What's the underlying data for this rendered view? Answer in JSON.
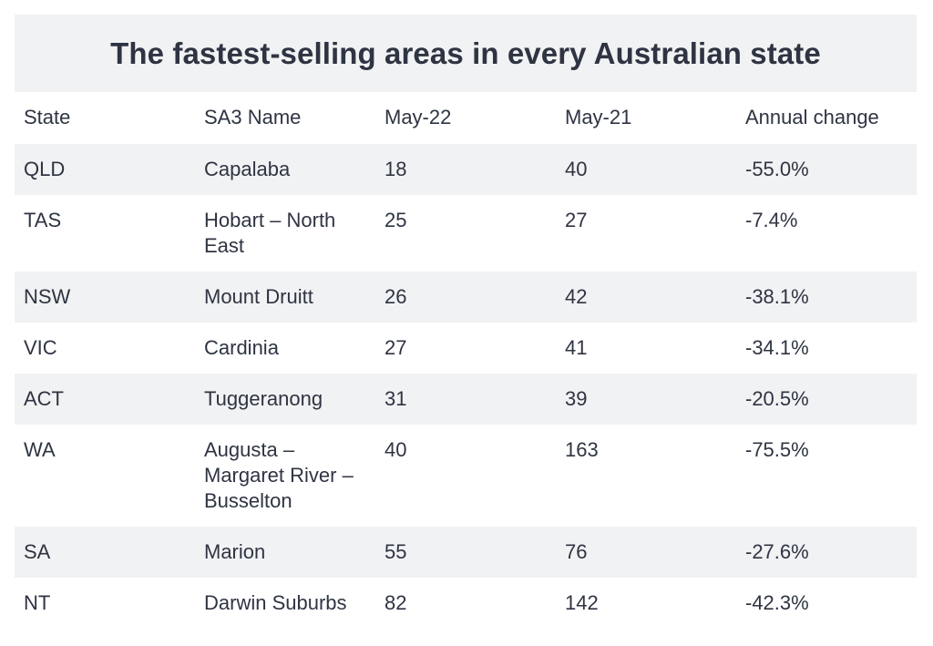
{
  "title": "The fastest-selling areas in every Australian state",
  "columns": [
    "State",
    "SA3 Name",
    "May-22",
    "May-21",
    "Annual change"
  ],
  "rows": [
    [
      "QLD",
      "Capalaba",
      "18",
      "40",
      "-55.0%"
    ],
    [
      "TAS",
      "Hobart – North East",
      "25",
      "27",
      "-7.4%"
    ],
    [
      "NSW",
      "Mount Druitt",
      "26",
      "42",
      "-38.1%"
    ],
    [
      "VIC",
      "Cardinia",
      "27",
      "41",
      "-34.1%"
    ],
    [
      "ACT",
      "Tuggeranong",
      "31",
      "39",
      "-20.5%"
    ],
    [
      "WA",
      "Augusta – Margaret River – Busselton",
      "40",
      "163",
      "-75.5%"
    ],
    [
      "SA",
      "Marion",
      "55",
      "76",
      "-27.6%"
    ],
    [
      "NT",
      "Darwin Suburbs",
      "82",
      "142",
      "-42.3%"
    ]
  ],
  "colors": {
    "shade": "#f1f2f3",
    "text": "#2e3442"
  }
}
